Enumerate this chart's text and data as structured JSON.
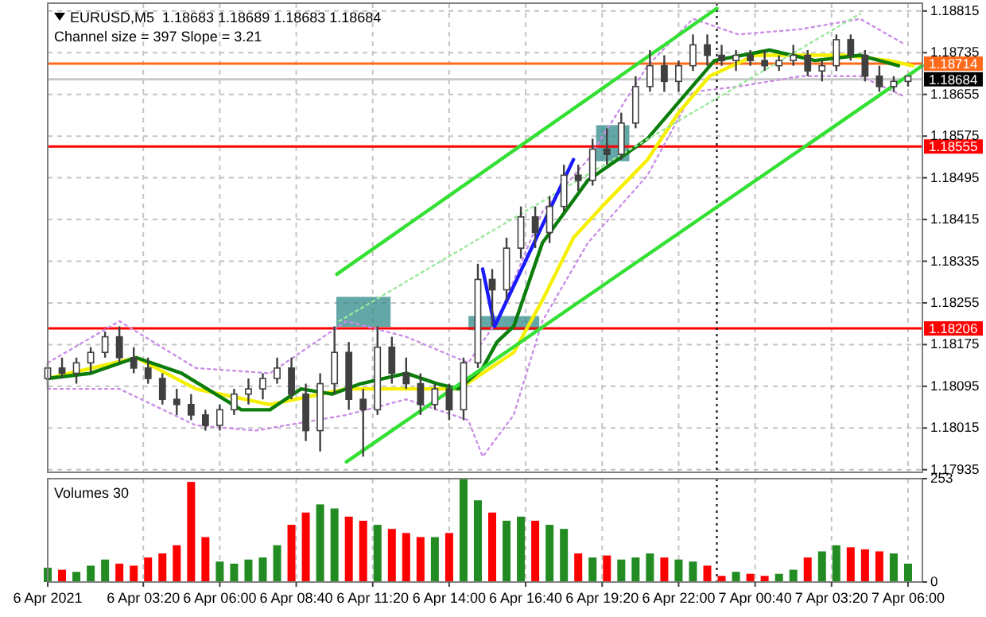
{
  "chart_data": [
    {
      "type": "candlestick",
      "title": "EURUSD,M5  1.18683 1.18689 1.18683 1.18684",
      "subtitle": "Channel size = 397 Slope = 3.21",
      "color": "#404040",
      "x": [
        "2021-04-06T00:00",
        "2021-04-06T00:30",
        "2021-04-06T01:00",
        "2021-04-06T01:30",
        "2021-04-06T02:00",
        "2021-04-06T02:30",
        "2021-04-06T03:00",
        "2021-04-06T03:30",
        "2021-04-06T04:00",
        "2021-04-06T04:30",
        "2021-04-06T05:00",
        "2021-04-06T05:30",
        "2021-04-06T06:00",
        "2021-04-06T06:30",
        "2021-04-06T07:00",
        "2021-04-06T07:30",
        "2021-04-06T08:00",
        "2021-04-06T08:30",
        "2021-04-06T09:00",
        "2021-04-06T09:30",
        "2021-04-06T10:00",
        "2021-04-06T10:30",
        "2021-04-06T11:00",
        "2021-04-06T11:30",
        "2021-04-06T12:00",
        "2021-04-06T12:30",
        "2021-04-06T13:00",
        "2021-04-06T13:30",
        "2021-04-06T14:00",
        "2021-04-06T14:30",
        "2021-04-06T15:00",
        "2021-04-06T15:30",
        "2021-04-06T16:00",
        "2021-04-06T16:30",
        "2021-04-06T17:00",
        "2021-04-06T17:30",
        "2021-04-06T18:00",
        "2021-04-06T18:30",
        "2021-04-06T19:00",
        "2021-04-06T19:30",
        "2021-04-06T20:00",
        "2021-04-06T20:30",
        "2021-04-06T21:00",
        "2021-04-06T21:30",
        "2021-04-06T22:00",
        "2021-04-06T22:30",
        "2021-04-06T23:00",
        "2021-04-06T23:30",
        "2021-04-07T00:00",
        "2021-04-07T00:30",
        "2021-04-07T01:00",
        "2021-04-07T01:30",
        "2021-04-07T02:00",
        "2021-04-07T02:30",
        "2021-04-07T03:00",
        "2021-04-07T03:30",
        "2021-04-07T04:00",
        "2021-04-07T04:30",
        "2021-04-07T05:00",
        "2021-04-07T05:30",
        "2021-04-07T06:00"
      ],
      "ohlc": [
        [
          1.1811,
          1.1814,
          1.1809,
          1.1813
        ],
        [
          1.1813,
          1.1815,
          1.1811,
          1.1812
        ],
        [
          1.1812,
          1.1815,
          1.181,
          1.1814
        ],
        [
          1.1814,
          1.1817,
          1.1812,
          1.1816
        ],
        [
          1.1816,
          1.182,
          1.1815,
          1.1819
        ],
        [
          1.1819,
          1.1821,
          1.1814,
          1.1815
        ],
        [
          1.1815,
          1.1817,
          1.1812,
          1.1813
        ],
        [
          1.1813,
          1.1815,
          1.181,
          1.1811
        ],
        [
          1.1811,
          1.1812,
          1.1806,
          1.1807
        ],
        [
          1.1807,
          1.1809,
          1.1804,
          1.1806
        ],
        [
          1.1806,
          1.1808,
          1.1803,
          1.1804
        ],
        [
          1.1804,
          1.1805,
          1.1801,
          1.1802
        ],
        [
          1.1802,
          1.1806,
          1.1801,
          1.1805
        ],
        [
          1.1805,
          1.1809,
          1.1804,
          1.1808
        ],
        [
          1.1808,
          1.1811,
          1.1806,
          1.1809
        ],
        [
          1.1809,
          1.1812,
          1.1807,
          1.1811
        ],
        [
          1.1811,
          1.1815,
          1.181,
          1.1813
        ],
        [
          1.1813,
          1.1815,
          1.1807,
          1.1808
        ],
        [
          1.1808,
          1.181,
          1.1799,
          1.1801
        ],
        [
          1.1801,
          1.1812,
          1.1797,
          1.181
        ],
        [
          1.181,
          1.1821,
          1.1808,
          1.1816
        ],
        [
          1.1816,
          1.1818,
          1.1805,
          1.1807
        ],
        [
          1.1807,
          1.1809,
          1.1796,
          1.1805
        ],
        [
          1.1805,
          1.1821,
          1.1804,
          1.1817
        ],
        [
          1.1817,
          1.1819,
          1.181,
          1.1812
        ],
        [
          1.1812,
          1.1815,
          1.1809,
          1.181
        ],
        [
          1.181,
          1.1812,
          1.1804,
          1.1806
        ],
        [
          1.1806,
          1.181,
          1.1805,
          1.1809
        ],
        [
          1.1809,
          1.181,
          1.1803,
          1.1805
        ],
        [
          1.1805,
          1.1815,
          1.1803,
          1.1814
        ],
        [
          1.1814,
          1.1833,
          1.1813,
          1.183
        ],
        [
          1.183,
          1.1832,
          1.1821,
          1.1828
        ],
        [
          1.1828,
          1.1838,
          1.1826,
          1.1836
        ],
        [
          1.1836,
          1.1844,
          1.1834,
          1.1842
        ],
        [
          1.1842,
          1.1844,
          1.1836,
          1.1839
        ],
        [
          1.1839,
          1.1846,
          1.1837,
          1.1844
        ],
        [
          1.1844,
          1.1852,
          1.1843,
          1.185
        ],
        [
          1.185,
          1.1852,
          1.1847,
          1.1849
        ],
        [
          1.1849,
          1.1857,
          1.1848,
          1.1855
        ],
        [
          1.1855,
          1.1859,
          1.1852,
          1.1854
        ],
        [
          1.1854,
          1.1862,
          1.1853,
          1.186
        ],
        [
          1.186,
          1.1869,
          1.1859,
          1.1867
        ],
        [
          1.1867,
          1.1874,
          1.1866,
          1.1871
        ],
        [
          1.1871,
          1.1873,
          1.1866,
          1.1868
        ],
        [
          1.1868,
          1.1872,
          1.1866,
          1.1871
        ],
        [
          1.1871,
          1.1877,
          1.187,
          1.1875
        ],
        [
          1.1875,
          1.1877,
          1.1871,
          1.1873
        ],
        [
          1.1873,
          1.1875,
          1.1871,
          1.1872
        ],
        [
          1.1872,
          1.1874,
          1.187,
          1.1873
        ],
        [
          1.1873,
          1.1874,
          1.1871,
          1.1872
        ],
        [
          1.1872,
          1.1874,
          1.187,
          1.1871
        ],
        [
          1.1871,
          1.1873,
          1.187,
          1.1872
        ],
        [
          1.1872,
          1.1875,
          1.1871,
          1.1873
        ],
        [
          1.1873,
          1.1874,
          1.1869,
          1.187
        ],
        [
          1.187,
          1.1872,
          1.1868,
          1.1871
        ],
        [
          1.1871,
          1.1877,
          1.187,
          1.1876
        ],
        [
          1.1876,
          1.1877,
          1.1872,
          1.1873
        ],
        [
          1.1873,
          1.1874,
          1.1868,
          1.1869
        ],
        [
          1.1869,
          1.1871,
          1.1866,
          1.1867
        ],
        [
          1.1867,
          1.1869,
          1.1866,
          1.1868
        ],
        [
          1.1868,
          1.1869,
          1.1867,
          1.1869
        ]
      ],
      "series": [
        {
          "type": "line",
          "color": "#ca8ee6",
          "line_style": "dotted",
          "x": [
            "2021-04-06T00:00",
            "2021-04-06T02:30",
            "2021-04-06T05:10",
            "2021-04-06T07:45",
            "2021-04-06T10:25",
            "2021-04-06T12:30",
            "2021-04-06T14:40",
            "2021-04-06T15:40",
            "2021-04-06T17:15",
            "2021-04-06T18:50",
            "2021-04-06T20:55",
            "2021-04-06T22:30",
            "2021-04-07T00:05",
            "2021-04-07T02:15",
            "2021-04-07T04:20",
            "2021-04-07T05:55"
          ],
          "values": [
            1.1814,
            1.1822,
            1.1813,
            1.1812,
            1.1822,
            1.1819,
            1.1814,
            1.1822,
            1.1843,
            1.1853,
            1.1871,
            1.188,
            1.1877,
            1.1878,
            1.188,
            1.1875
          ]
        },
        {
          "type": "line",
          "color": "#ca8ee6",
          "line_style": "dotted",
          "x": [
            "2021-04-06T00:00",
            "2021-04-06T02:30",
            "2021-04-06T05:10",
            "2021-04-06T07:15",
            "2021-04-06T10:25",
            "2021-04-06T12:30",
            "2021-04-06T14:40",
            "2021-04-06T15:10",
            "2021-04-06T16:15",
            "2021-04-06T17:15",
            "2021-04-06T18:50",
            "2021-04-06T20:55",
            "2021-04-06T22:30",
            "2021-04-07T00:05",
            "2021-04-07T02:15",
            "2021-04-07T04:20",
            "2021-04-07T05:55"
          ],
          "values": [
            1.1809,
            1.1809,
            1.1802,
            1.1801,
            1.1804,
            1.1807,
            1.1803,
            1.1796,
            1.1804,
            1.1822,
            1.1837,
            1.185,
            1.1866,
            1.1867,
            1.1869,
            1.1869,
            1.1865
          ]
        },
        {
          "type": "line",
          "color": "#f5f000",
          "x": [
            "2021-04-06T00:00",
            "2021-04-06T03:05",
            "2021-04-06T05:10",
            "2021-04-06T07:45",
            "2021-04-06T10:25",
            "2021-04-06T12:30",
            "2021-04-06T14:20",
            "2021-04-06T15:10",
            "2021-04-06T16:15",
            "2021-04-06T17:15",
            "2021-04-06T18:20",
            "2021-04-06T19:20",
            "2021-04-06T20:55",
            "2021-04-06T22:00",
            "2021-04-06T23:05",
            "2021-04-07T00:40",
            "2021-04-07T02:15",
            "2021-04-07T03:45",
            "2021-04-07T05:20",
            "2021-04-07T06:10"
          ],
          "values": [
            1.1811,
            1.1815,
            1.1809,
            1.1806,
            1.1809,
            1.1809,
            1.1809,
            1.1812,
            1.1816,
            1.1826,
            1.1838,
            1.1844,
            1.1853,
            1.1862,
            1.1869,
            1.1873,
            1.1873,
            1.1873,
            1.1872,
            1.1871
          ]
        },
        {
          "type": "line",
          "color": "#0b7d0b",
          "x": [
            "2021-04-06T00:00",
            "2021-04-06T01:30",
            "2021-04-06T03:05",
            "2021-04-06T04:40",
            "2021-04-06T06:45",
            "2021-04-06T07:45",
            "2021-04-06T08:50",
            "2021-04-06T09:55",
            "2021-04-06T10:55",
            "2021-04-06T12:30",
            "2021-04-06T13:35",
            "2021-04-06T14:20",
            "2021-04-06T15:10",
            "2021-04-06T15:40",
            "2021-04-06T16:15",
            "2021-04-06T17:15",
            "2021-04-06T18:50",
            "2021-04-06T20:55",
            "2021-04-06T22:00",
            "2021-04-06T23:15",
            "2021-04-07T01:10",
            "2021-04-07T02:45",
            "2021-04-07T04:20",
            "2021-04-07T05:40"
          ],
          "values": [
            1.1811,
            1.1812,
            1.1815,
            1.1812,
            1.1805,
            1.1805,
            1.1809,
            1.1808,
            1.181,
            1.1812,
            1.181,
            1.1809,
            1.1813,
            1.1818,
            1.1821,
            1.1837,
            1.1849,
            1.1857,
            1.1864,
            1.1872,
            1.1874,
            1.1872,
            1.1873,
            1.1871
          ]
        },
        {
          "type": "line",
          "color": "#33e033",
          "x": [
            "2021-04-06T10:05",
            "2021-04-06T23:20"
          ],
          "values": [
            1.1831,
            1.1882
          ]
        },
        {
          "type": "line",
          "color": "#9ae89a",
          "line_style": "dotted",
          "x": [
            "2021-04-06T10:10",
            "2021-04-07T04:20"
          ],
          "values": [
            1.1822,
            1.1881
          ]
        },
        {
          "type": "line",
          "color": "#33e033",
          "x": [
            "2021-04-06T10:25",
            "2021-04-07T06:30"
          ],
          "values": [
            1.1795,
            1.1871
          ]
        },
        {
          "type": "line",
          "color": "#1a1aff",
          "x": [
            "2021-04-06T15:10",
            "2021-04-06T15:35",
            "2021-04-06T18:20"
          ],
          "values": [
            1.1832,
            1.1821,
            1.1853
          ]
        }
      ],
      "ref_lines": [
        {
          "axis": "y",
          "value": 1.18714,
          "label": "1.18714",
          "color": "#ff6a1a"
        },
        {
          "axis": "y",
          "value": 1.18684,
          "label": "1.18684",
          "color": "#c8c8c8"
        },
        {
          "axis": "y",
          "value": 1.18555,
          "label": "1.18555",
          "color": "#ff0000"
        },
        {
          "axis": "y",
          "value": 1.18206,
          "label": "1.18206",
          "color": "#ff0000"
        },
        {
          "axis": "x",
          "value": "2021-04-06T23:20",
          "color": "#000000",
          "line_style": "dotted"
        }
      ],
      "xlim": [
        "2021-04-06T00:00",
        "2021-04-07T06:30"
      ],
      "ylim": [
        1.1793,
        1.1883
      ],
      "yticks": [
        1.18815,
        1.18735,
        1.18655,
        1.18575,
        1.18495,
        1.18415,
        1.18335,
        1.18255,
        1.18175,
        1.18095,
        1.18015,
        1.17935
      ],
      "grid": true,
      "tick_labels": "y"
    },
    {
      "type": "bar",
      "title": "Volumes 30",
      "x": [
        "2021-04-06T00:00",
        "2021-04-06T00:30",
        "2021-04-06T01:00",
        "2021-04-06T01:30",
        "2021-04-06T02:00",
        "2021-04-06T02:30",
        "2021-04-06T03:00",
        "2021-04-06T03:30",
        "2021-04-06T04:00",
        "2021-04-06T04:30",
        "2021-04-06T05:00",
        "2021-04-06T05:30",
        "2021-04-06T06:00",
        "2021-04-06T06:30",
        "2021-04-06T07:00",
        "2021-04-06T07:30",
        "2021-04-06T08:00",
        "2021-04-06T08:30",
        "2021-04-06T09:00",
        "2021-04-06T09:30",
        "2021-04-06T10:00",
        "2021-04-06T10:30",
        "2021-04-06T11:00",
        "2021-04-06T11:30",
        "2021-04-06T12:00",
        "2021-04-06T12:30",
        "2021-04-06T13:00",
        "2021-04-06T13:30",
        "2021-04-06T14:00",
        "2021-04-06T14:30",
        "2021-04-06T15:00",
        "2021-04-06T15:30",
        "2021-04-06T16:00",
        "2021-04-06T16:30",
        "2021-04-06T17:00",
        "2021-04-06T17:30",
        "2021-04-06T18:00",
        "2021-04-06T18:30",
        "2021-04-06T19:00",
        "2021-04-06T19:30",
        "2021-04-06T20:00",
        "2021-04-06T20:30",
        "2021-04-06T21:00",
        "2021-04-06T21:30",
        "2021-04-06T22:00",
        "2021-04-06T22:30",
        "2021-04-06T23:00",
        "2021-04-06T23:30",
        "2021-04-07T00:00",
        "2021-04-07T00:30",
        "2021-04-07T01:00",
        "2021-04-07T01:30",
        "2021-04-07T02:00",
        "2021-04-07T02:30",
        "2021-04-07T03:00",
        "2021-04-07T03:30",
        "2021-04-07T04:00",
        "2021-04-07T04:30",
        "2021-04-07T05:00",
        "2021-04-07T05:30",
        "2021-04-07T06:00"
      ],
      "values": [
        35,
        30,
        25,
        40,
        55,
        45,
        40,
        60,
        70,
        90,
        245,
        110,
        50,
        45,
        55,
        60,
        90,
        140,
        170,
        190,
        180,
        160,
        150,
        140,
        130,
        120,
        110,
        110,
        120,
        253,
        200,
        170,
        150,
        160,
        150,
        140,
        130,
        70,
        60,
        65,
        55,
        60,
        70,
        60,
        55,
        50,
        40,
        15,
        25,
        20,
        15,
        20,
        30,
        60,
        75,
        90,
        85,
        80,
        75,
        70,
        45
      ],
      "colors": [
        "#228b22",
        "#ff0000",
        "#228b22",
        "#228b22",
        "#228b22",
        "#ff0000",
        "#ff0000",
        "#ff0000",
        "#ff0000",
        "#ff0000",
        "#ff0000",
        "#ff0000",
        "#228b22",
        "#228b22",
        "#228b22",
        "#228b22",
        "#228b22",
        "#ff0000",
        "#ff0000",
        "#228b22",
        "#228b22",
        "#ff0000",
        "#ff0000",
        "#228b22",
        "#ff0000",
        "#ff0000",
        "#ff0000",
        "#228b22",
        "#ff0000",
        "#228b22",
        "#228b22",
        "#ff0000",
        "#228b22",
        "#228b22",
        "#ff0000",
        "#228b22",
        "#228b22",
        "#ff0000",
        "#228b22",
        "#ff0000",
        "#228b22",
        "#228b22",
        "#228b22",
        "#ff0000",
        "#228b22",
        "#228b22",
        "#ff0000",
        "#ff0000",
        "#228b22",
        "#ff0000",
        "#ff0000",
        "#228b22",
        "#228b22",
        "#ff0000",
        "#228b22",
        "#228b22",
        "#ff0000",
        "#ff0000",
        "#ff0000",
        "#228b22",
        "#228b22"
      ],
      "xlim": [
        "2021-04-06T00:00",
        "2021-04-07T06:30"
      ],
      "xticks": [
        {
          "value": "2021-04-06T00:00",
          "label": "6 Apr 2021"
        },
        {
          "value": "2021-04-06T03:20",
          "label": "6 Apr 03:20"
        },
        {
          "value": "2021-04-06T06:00",
          "label": "6 Apr 06:00"
        },
        {
          "value": "2021-04-06T08:40",
          "label": "6 Apr 08:40"
        },
        {
          "value": "2021-04-06T11:20",
          "label": "6 Apr 11:20"
        },
        {
          "value": "2021-04-06T14:00",
          "label": "6 Apr 14:00"
        },
        {
          "value": "2021-04-06T16:40",
          "label": "6 Apr 16:40"
        },
        {
          "value": "2021-04-06T19:20",
          "label": "6 Apr 19:20"
        },
        {
          "value": "2021-04-06T22:00",
          "label": "6 Apr 22:00"
        },
        {
          "value": "2021-04-07T00:40",
          "label": "7 Apr 00:40"
        },
        {
          "value": "2021-04-07T03:20",
          "label": "7 Apr 03:20"
        },
        {
          "value": "2021-04-07T06:00",
          "label": "7 Apr 06:00"
        }
      ],
      "ylim": [
        0,
        253
      ],
      "yticks": [
        253,
        0
      ],
      "grid": "x",
      "ref_lines": [
        {
          "axis": "x",
          "value": "2021-04-06T23:20",
          "color": "#000000",
          "line_style": "dotted"
        }
      ]
    }
  ]
}
